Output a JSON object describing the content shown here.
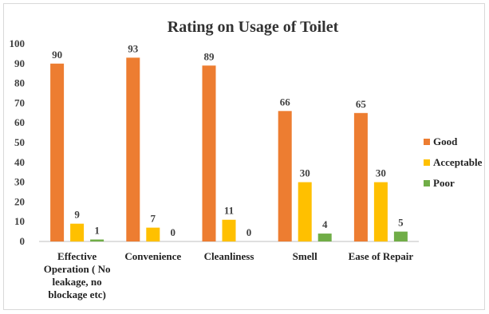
{
  "chart_data": {
    "type": "bar",
    "title": "Rating on Usage of Toilet",
    "categories": [
      "Effective Operation ( No leakage, no blockage etc)",
      "Convenience",
      "Cleanliness",
      "Smell",
      "Ease of Repair"
    ],
    "category_lines": [
      [
        "Effective",
        "Operation ( No",
        "leakage, no",
        "blockage etc)"
      ],
      [
        "Convenience"
      ],
      [
        "Cleanliness"
      ],
      [
        "Smell"
      ],
      [
        "Ease of Repair"
      ]
    ],
    "series": [
      {
        "name": "Good",
        "color": "#ed7d31",
        "values": [
          90,
          93,
          89,
          66,
          65
        ]
      },
      {
        "name": "Acceptable",
        "color": "#ffc000",
        "values": [
          9,
          7,
          11,
          30,
          30
        ]
      },
      {
        "name": "Poor",
        "color": "#70ad47",
        "values": [
          1,
          0,
          0,
          4,
          5
        ]
      }
    ],
    "ylim": [
      0,
      100
    ],
    "yticks": [
      "0",
      "10",
      "20",
      "30",
      "40",
      "50",
      "60",
      "70",
      "80",
      "90",
      "100"
    ],
    "grid": false,
    "data_labels": true,
    "legend_position": "right"
  }
}
